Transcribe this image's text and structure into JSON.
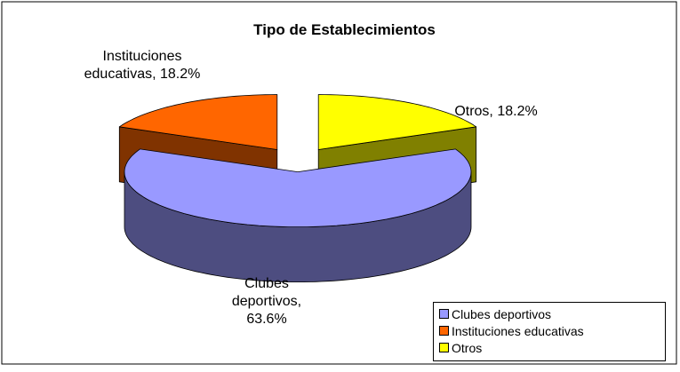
{
  "chart_data": {
    "type": "pie",
    "title": "Tipo de Establecimientos",
    "categories": [
      "Clubes deportivos",
      "Instituciones educativas",
      "Otros"
    ],
    "values": [
      63.6,
      18.2,
      18.2
    ],
    "value_labels": [
      "Clubes deportivos, 63.6%",
      "Instituciones educativas, 18.2%",
      "Otros, 18.2%"
    ],
    "colors": [
      "#9999FF",
      "#FF6600",
      "#FFFF00"
    ],
    "legend": "bottom-right"
  }
}
